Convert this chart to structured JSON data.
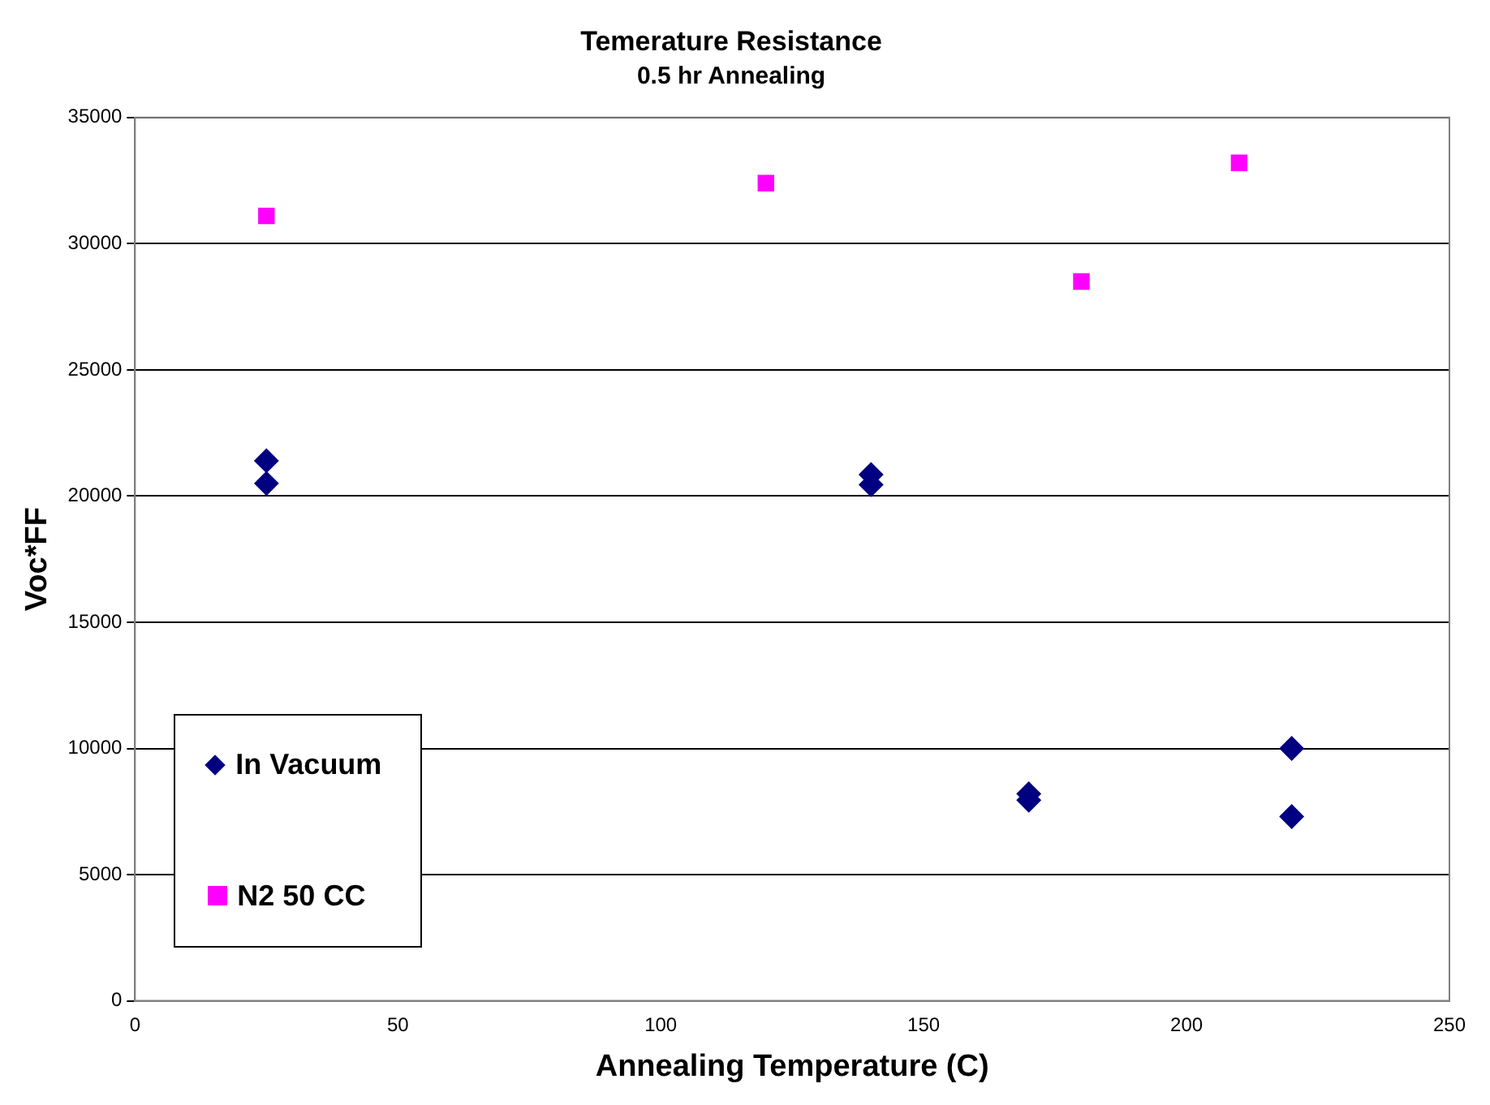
{
  "chart_data": {
    "type": "scatter",
    "title": "Temerature Resistance",
    "subtitle": "0.5 hr Annealing",
    "xlabel": "Annealing Temperature (C)",
    "ylabel": "Voc*FF",
    "xlim": [
      0,
      250
    ],
    "xticks": [
      0,
      50,
      100,
      150,
      200,
      250
    ],
    "ylim": [
      0,
      35000
    ],
    "yticks": [
      0,
      5000,
      10000,
      15000,
      20000,
      25000,
      30000,
      35000
    ],
    "grid": "y",
    "legend": "bottom left",
    "series": [
      {
        "name": "In Vacuum",
        "color": "#000080",
        "marker": "diamond",
        "x": [
          25,
          25,
          140,
          140,
          170,
          170,
          220,
          220
        ],
        "values": [
          21400,
          20500,
          20850,
          20450,
          8200,
          7950,
          10000,
          7300
        ]
      },
      {
        "name": "N2 50 CC",
        "color": "#ff00ff",
        "marker": "square",
        "x": [
          25,
          120,
          180,
          210
        ],
        "values": [
          31100,
          32400,
          28500,
          33200
        ]
      }
    ]
  }
}
